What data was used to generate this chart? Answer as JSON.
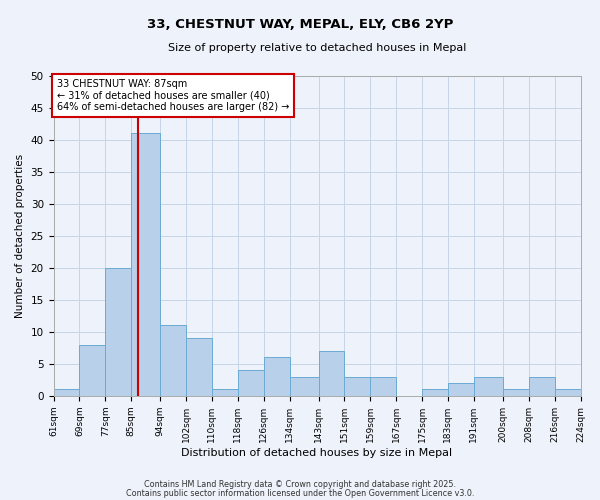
{
  "title": "33, CHESTNUT WAY, MEPAL, ELY, CB6 2YP",
  "subtitle": "Size of property relative to detached houses in Mepal",
  "xlabel": "Distribution of detached houses by size in Mepal",
  "ylabel": "Number of detached properties",
  "bin_edges": [
    61,
    69,
    77,
    85,
    94,
    102,
    110,
    118,
    126,
    134,
    143,
    151,
    159,
    167,
    175,
    183,
    191,
    200,
    208,
    216,
    224
  ],
  "bar_heights": [
    1,
    8,
    20,
    41,
    11,
    9,
    1,
    4,
    6,
    3,
    7,
    3,
    3,
    0,
    1,
    2,
    3,
    1,
    3,
    1
  ],
  "bar_color": "#b8d0ea",
  "bar_edge_color": "#6aaad4",
  "vline_x": 87,
  "vline_color": "#cc0000",
  "annotation_text": "33 CHESTNUT WAY: 87sqm\n← 31% of detached houses are smaller (40)\n64% of semi-detached houses are larger (82) →",
  "annotation_box_color": "#ffffff",
  "annotation_box_edge": "#cc0000",
  "ylim": [
    0,
    50
  ],
  "yticks": [
    0,
    5,
    10,
    15,
    20,
    25,
    30,
    35,
    40,
    45,
    50
  ],
  "xtick_labels": [
    "61sqm",
    "69sqm",
    "77sqm",
    "85sqm",
    "94sqm",
    "102sqm",
    "110sqm",
    "118sqm",
    "126sqm",
    "134sqm",
    "143sqm",
    "151sqm",
    "159sqm",
    "167sqm",
    "175sqm",
    "183sqm",
    "191sqm",
    "200sqm",
    "208sqm",
    "216sqm",
    "224sqm"
  ],
  "background_color": "#eef2fa",
  "grid_color": "#c5d5e8",
  "footer_line1": "Contains HM Land Registry data © Crown copyright and database right 2025.",
  "footer_line2": "Contains public sector information licensed under the Open Government Licence v3.0."
}
